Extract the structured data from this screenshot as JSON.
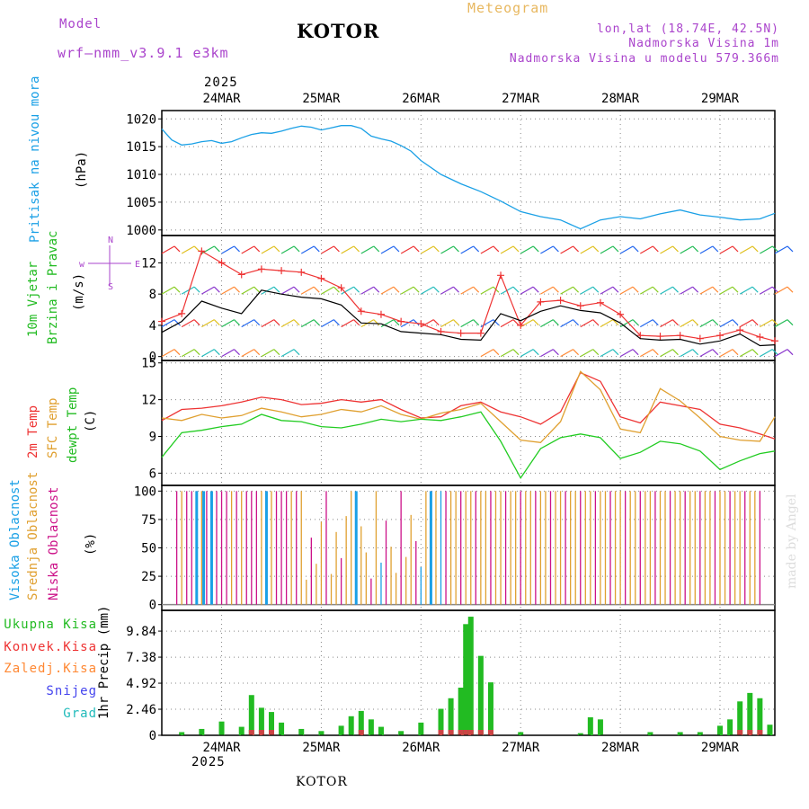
{
  "header": {
    "model_label": "Model",
    "model_name": "wrf—nmm_v3.9.1 e3km",
    "title": "KOTOR",
    "meteogram": "Meteogram",
    "lonlat": "lon,lat (18.74E, 42.5N)",
    "elevation": "Nadmorska Visina 1m",
    "model_elevation": "Nadmorska Visina u modelu 579.366m",
    "footer": "KOTOR",
    "watermark": "made by Angel",
    "year": "2025"
  },
  "colors": {
    "pressure": "#1aa0e6",
    "wind": "#22bb22",
    "temp2m": "#ee3333",
    "sfc": "#e0a030",
    "dewpt": "#22cc22",
    "high": "#1aa0e6",
    "mid": "#e0a030",
    "low": "#cc1188",
    "model": "#aa44cc"
  },
  "chart_data": {
    "type": "meteogram",
    "x_ticks": [
      "24MAR",
      "25MAR",
      "26MAR",
      "27MAR",
      "28MAR",
      "29MAR"
    ],
    "x_range_days": [
      -0.6,
      5.55
    ],
    "panels": {
      "pressure": {
        "ylabel": "Pritisak na nivou mora",
        "unit": "(hPa)",
        "ylim": [
          999,
          1021.5
        ],
        "ticks": [
          1000,
          1005,
          1010,
          1015,
          1020
        ],
        "tick_labels": [
          "1000",
          "1005",
          "1010",
          "1015",
          "1020"
        ],
        "x": [
          -0.6,
          -0.5,
          -0.4,
          -0.3,
          -0.2,
          -0.1,
          0,
          0.1,
          0.2,
          0.3,
          0.4,
          0.5,
          0.6,
          0.7,
          0.8,
          0.9,
          1.0,
          1.1,
          1.2,
          1.3,
          1.4,
          1.5,
          1.6,
          1.7,
          1.8,
          1.9,
          2.0,
          2.2,
          2.4,
          2.6,
          2.8,
          3.0,
          3.2,
          3.4,
          3.6,
          3.8,
          4.0,
          4.2,
          4.4,
          4.6,
          4.8,
          5.0,
          5.2,
          5.4,
          5.55
        ],
        "y": [
          1018.2,
          1016.2,
          1015.3,
          1015.5,
          1015.9,
          1016.1,
          1015.6,
          1015.9,
          1016.6,
          1017.2,
          1017.5,
          1017.4,
          1017.8,
          1018.3,
          1018.7,
          1018.5,
          1018.0,
          1018.4,
          1018.8,
          1018.8,
          1018.3,
          1016.9,
          1016.4,
          1016.0,
          1015.2,
          1014.2,
          1012.5,
          1010.0,
          1008.3,
          1006.9,
          1005.2,
          1003.3,
          1002.4,
          1001.8,
          1000.2,
          1001.8,
          1002.4,
          1002.0,
          1002.9,
          1003.6,
          1002.7,
          1002.3,
          1001.8,
          1002.0,
          1003.0
        ]
      },
      "wind": {
        "ylabel": "10m Vjetar",
        "ylabel2": "Brzina i Pravac",
        "unit": "(m/s)",
        "ylim": [
          -0.5,
          15.5
        ],
        "ticks": [
          0,
          4,
          8,
          12
        ],
        "tick_labels": [
          "0",
          "4",
          "8",
          "12"
        ],
        "compass": {
          "w": "w",
          "e": "E",
          "n": "N",
          "s": "S"
        },
        "x": [
          -0.6,
          -0.4,
          -0.2,
          0,
          0.2,
          0.4,
          0.6,
          0.8,
          1.0,
          1.2,
          1.4,
          1.6,
          1.8,
          2.0,
          2.2,
          2.4,
          2.6,
          2.8,
          3.0,
          3.2,
          3.4,
          3.6,
          3.8,
          4.0,
          4.2,
          4.4,
          4.6,
          4.8,
          5.0,
          5.2,
          5.4,
          5.55
        ],
        "speed": [
          3.1,
          4.5,
          7.1,
          6.2,
          5.5,
          8.5,
          8.0,
          7.6,
          7.4,
          6.6,
          4.3,
          4.2,
          3.2,
          3.0,
          2.8,
          2.2,
          2.1,
          5.5,
          4.6,
          5.8,
          6.5,
          5.9,
          5.6,
          4.3,
          2.3,
          2.1,
          2.2,
          1.6,
          2.0,
          2.9,
          1.4,
          1.5
        ],
        "gust": [
          4.5,
          5.5,
          13.5,
          12.0,
          10.5,
          11.2,
          11.0,
          10.8,
          10.0,
          8.8,
          5.8,
          5.4,
          4.5,
          4.2,
          3.2,
          3.0,
          3.0,
          10.4,
          4.0,
          7.0,
          7.2,
          6.5,
          6.9,
          5.4,
          2.7,
          2.6,
          2.7,
          2.3,
          2.7,
          3.4,
          2.5,
          2.0
        ]
      },
      "temperature": {
        "ylabels": [
          "2m Temp",
          "SFC Temp",
          "dewpt Temp"
        ],
        "unit": "(C)",
        "ylim": [
          5,
          15.2
        ],
        "ticks": [
          6,
          9,
          12,
          15
        ],
        "tick_labels": [
          "6",
          "9",
          "12",
          "15"
        ],
        "x": [
          -0.6,
          -0.4,
          -0.2,
          0,
          0.2,
          0.4,
          0.6,
          0.8,
          1.0,
          1.2,
          1.4,
          1.6,
          1.8,
          2.0,
          2.2,
          2.4,
          2.6,
          2.8,
          3.0,
          3.2,
          3.4,
          3.6,
          3.8,
          4.0,
          4.2,
          4.4,
          4.6,
          4.8,
          5.0,
          5.2,
          5.4,
          5.55
        ],
        "t2m": [
          10.3,
          11.2,
          11.3,
          11.5,
          11.8,
          12.2,
          12.0,
          11.6,
          11.7,
          12.0,
          11.8,
          12.0,
          11.2,
          10.5,
          10.6,
          11.5,
          11.8,
          11.0,
          10.6,
          10.0,
          11.0,
          14.2,
          13.5,
          10.6,
          10.1,
          11.8,
          11.5,
          11.2,
          10.0,
          9.7,
          9.2,
          8.8
        ],
        "sfc": [
          10.5,
          10.3,
          10.8,
          10.5,
          10.7,
          11.3,
          11.0,
          10.6,
          10.8,
          11.2,
          11.0,
          11.5,
          10.8,
          10.4,
          10.9,
          11.2,
          11.7,
          10.2,
          8.7,
          8.5,
          10.2,
          14.3,
          12.8,
          9.6,
          9.3,
          12.9,
          11.9,
          10.5,
          9.0,
          8.7,
          8.6,
          10.6
        ],
        "dew": [
          7.3,
          9.3,
          9.5,
          9.8,
          10.0,
          10.8,
          10.3,
          10.2,
          9.8,
          9.7,
          10.0,
          10.4,
          10.2,
          10.4,
          10.3,
          10.6,
          11.0,
          8.6,
          5.6,
          8.0,
          8.9,
          9.2,
          8.9,
          7.2,
          7.7,
          8.6,
          8.4,
          7.8,
          6.3,
          7.0,
          7.6,
          7.8
        ]
      },
      "clouds": {
        "ylabels": [
          "Visoka Oblacnost",
          "Srednja Oblacnost",
          "Niska Oblacnost"
        ],
        "unit": "(%)",
        "ylim": [
          -5,
          105
        ],
        "ticks": [
          0,
          25,
          50,
          75,
          100
        ],
        "tick_labels": [
          "0",
          "25",
          "50",
          "75",
          "100"
        ]
      },
      "precip": {
        "ylabel": "1hr Precip (mm)",
        "legend": [
          "Ukupna Kisa",
          "Konvek.Kisa",
          "Zaledj.Kisa",
          "Snijeg",
          "Grad"
        ],
        "legend_colors": [
          "#22bb22",
          "#ee3333",
          "#ff8833",
          "#4444ee",
          "#22bbbb"
        ],
        "ylim": [
          0,
          11.8
        ],
        "ticks": [
          0,
          2.46,
          4.92,
          7.38,
          9.84
        ],
        "tick_labels": [
          "0",
          "2.46",
          "4.92",
          "7.38",
          "9.84"
        ],
        "x": [
          -0.4,
          -0.2,
          0,
          0.2,
          0.3,
          0.4,
          0.5,
          0.6,
          0.8,
          1.0,
          1.2,
          1.3,
          1.4,
          1.5,
          1.6,
          1.8,
          2.0,
          2.2,
          2.3,
          2.4,
          2.45,
          2.5,
          2.6,
          2.7,
          3.0,
          3.6,
          3.7,
          3.8,
          4.3,
          4.6,
          4.8,
          5.0,
          5.1,
          5.2,
          5.3,
          5.4,
          5.5
        ],
        "total": [
          0.3,
          0.6,
          1.3,
          0.8,
          3.8,
          2.6,
          2.2,
          1.2,
          0.6,
          0.4,
          0.9,
          1.8,
          2.3,
          1.5,
          0.8,
          0.4,
          1.2,
          2.5,
          3.5,
          4.5,
          10.5,
          11.2,
          7.5,
          5.0,
          0.3,
          0.2,
          1.7,
          1.5,
          0.3,
          0.3,
          0.3,
          0.9,
          1.5,
          3.2,
          4.0,
          3.5,
          1.0
        ]
      }
    }
  }
}
